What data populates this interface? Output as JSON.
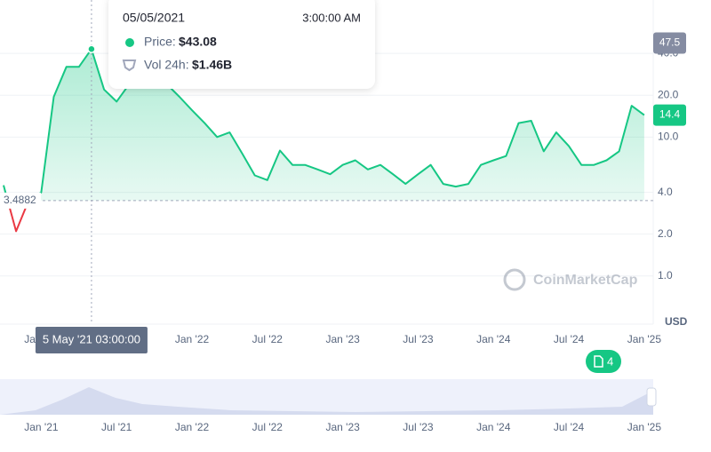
{
  "chart_data": {
    "type": "line",
    "scale": "log",
    "color": "#16c784",
    "down_color": "#ea3943",
    "x": [
      "2020-10",
      "2020-11",
      "2020-12",
      "2021-01",
      "2021-02",
      "2021-03",
      "2021-04",
      "2021-05",
      "2021-06",
      "2021-07",
      "2021-08",
      "2021-09",
      "2021-10",
      "2021-11",
      "2021-12",
      "2022-01",
      "2022-02",
      "2022-03",
      "2022-04",
      "2022-05",
      "2022-06",
      "2022-07",
      "2022-08",
      "2022-09",
      "2022-10",
      "2022-11",
      "2022-12",
      "2023-01",
      "2023-02",
      "2023-03",
      "2023-04",
      "2023-05",
      "2023-06",
      "2023-07",
      "2023-08",
      "2023-09",
      "2023-10",
      "2023-11",
      "2023-12",
      "2024-01",
      "2024-02",
      "2024-03",
      "2024-04",
      "2024-05",
      "2024-06",
      "2024-07",
      "2024-08",
      "2024-09",
      "2024-10",
      "2024-11",
      "2024-12",
      "2025-01"
    ],
    "values": [
      4.5,
      2.1,
      3.5,
      4.0,
      19.5,
      32,
      32,
      43,
      22,
      18,
      24,
      24,
      28,
      24,
      19.5,
      15.6,
      12.6,
      10,
      10.8,
      7.6,
      5.3,
      4.9,
      8.0,
      6.3,
      6.3,
      5.85,
      5.4,
      6.3,
      6.8,
      5.85,
      6.3,
      5.4,
      4.6,
      5.4,
      6.3,
      4.6,
      4.4,
      4.6,
      6.3,
      6.8,
      7.3,
      12.6,
      13.1,
      7.9,
      10.8,
      8.6,
      6.3,
      6.3,
      6.8,
      7.9,
      16.8,
      14.4
    ],
    "xlim": [
      "2020-10",
      "2025-02"
    ],
    "xticks": [
      {
        "value": "2021-01",
        "label": "Jan '21"
      },
      {
        "value": "2021-07",
        "label": "Jul '21"
      },
      {
        "value": "2022-01",
        "label": "Jan '22"
      },
      {
        "value": "2022-07",
        "label": "Jul '22"
      },
      {
        "value": "2023-01",
        "label": "Jan '23"
      },
      {
        "value": "2023-07",
        "label": "Jul '23"
      },
      {
        "value": "2024-01",
        "label": "Jan '24"
      },
      {
        "value": "2024-07",
        "label": "Jul '24"
      },
      {
        "value": "2025-01",
        "label": "Jan '25"
      }
    ],
    "ylim": [
      0.45,
      97
    ],
    "yticks": [
      {
        "value": 1,
        "label": "1.0"
      },
      {
        "value": 2,
        "label": "2.0"
      },
      {
        "value": 4,
        "label": "4.0"
      },
      {
        "value": 10,
        "label": "10.0"
      },
      {
        "value": 20,
        "label": "20.0"
      },
      {
        "value": 40,
        "label": "40.0"
      }
    ],
    "grid": true,
    "currency": "USD",
    "watermark": "CoinMarketCap",
    "baseline": {
      "value": 3.4882,
      "label": "3.4882"
    },
    "current_price": {
      "value": 14.4,
      "label": "14.4"
    },
    "crosshair_price": {
      "value": 47.5,
      "label": "47.5"
    },
    "hover_index": 7,
    "hover_date_label": "5 May '21 03:00:00",
    "notes_badge": "4",
    "tooltip": {
      "date": "05/05/2021",
      "time": "3:00:00 AM",
      "price_label": "Price:",
      "price": "$43.08",
      "vol_label": "Vol 24h:",
      "vol": "$1.46B"
    }
  }
}
